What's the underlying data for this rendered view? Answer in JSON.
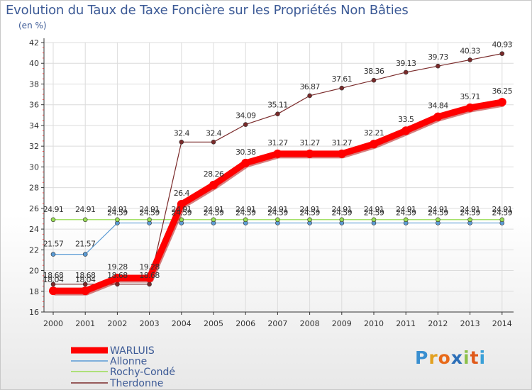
{
  "chart_data": {
    "type": "line",
    "title": "Evolution du Taux de Taxe Foncière sur les Propriétés Non Bâties",
    "ylabel": "(en %)",
    "xlabel": "",
    "x": [
      "2000",
      "2001",
      "2002",
      "2003",
      "2004",
      "2005",
      "2006",
      "2007",
      "2008",
      "2009",
      "2010",
      "2011",
      "2012",
      "2013",
      "2014"
    ],
    "ylim": [
      16,
      42
    ],
    "yticks": [
      "16",
      "18",
      "20",
      "22",
      "24",
      "26",
      "28",
      "30",
      "32",
      "34",
      "36",
      "38",
      "40",
      "42"
    ],
    "grid": true,
    "legend_position": "bottom-left",
    "series": [
      {
        "name": "WARLUIS",
        "color": "#ff0000",
        "values": [
          18.04,
          18.04,
          19.28,
          19.28,
          26.4,
          28.26,
          30.38,
          31.27,
          31.27,
          31.27,
          32.21,
          33.5,
          34.84,
          35.71,
          36.25
        ],
        "labels": [
          "18.04",
          "18.04",
          "19.28",
          "19.28",
          "26.4",
          "28.26",
          "30.38",
          "31.27",
          "31.27",
          "31.27",
          "32.21",
          "33.5",
          "34.84",
          "35.71",
          "36.25"
        ]
      },
      {
        "name": "Allonne",
        "color": "#5b9bd5",
        "values": [
          21.57,
          21.57,
          24.59,
          24.59,
          24.59,
          24.59,
          24.59,
          24.59,
          24.59,
          24.59,
          24.59,
          24.59,
          24.59,
          24.59,
          24.59
        ],
        "labels": [
          "21.57",
          "21.57",
          "24.59",
          "24.59",
          "24.59",
          "24.59",
          "24.59",
          "24.59",
          "24.59",
          "24.59",
          "24.59",
          "24.59",
          "24.59",
          "24.59",
          "24.59"
        ]
      },
      {
        "name": "Rochy-Condé",
        "color": "#99dd55",
        "values": [
          24.91,
          24.91,
          24.91,
          24.91,
          24.91,
          24.91,
          24.91,
          24.91,
          24.91,
          24.91,
          24.91,
          24.91,
          24.91,
          24.91,
          24.91
        ],
        "labels": [
          "24.91",
          "24.91",
          "24.91",
          "24.91",
          "24.91",
          "24.91",
          "24.91",
          "24.91",
          "24.91",
          "24.91",
          "24.91",
          "24.91",
          "24.91",
          "24.91",
          "24.91"
        ]
      },
      {
        "name": "Therdonne",
        "color": "#7a2a2a",
        "values": [
          18.68,
          18.68,
          18.68,
          18.68,
          32.4,
          32.4,
          34.09,
          35.11,
          36.87,
          37.61,
          38.36,
          39.13,
          39.73,
          40.33,
          40.93
        ],
        "labels": [
          "18.68",
          "18.68",
          "18.68",
          "18.68",
          "32.4",
          "32.4",
          "34.09",
          "35.11",
          "36.87",
          "37.61",
          "38.36",
          "39.13",
          "39.73",
          "40.33",
          "40.93"
        ]
      }
    ]
  },
  "branding": {
    "letters": [
      "P",
      "r",
      "o",
      "x",
      "i",
      "t",
      "i"
    ]
  }
}
